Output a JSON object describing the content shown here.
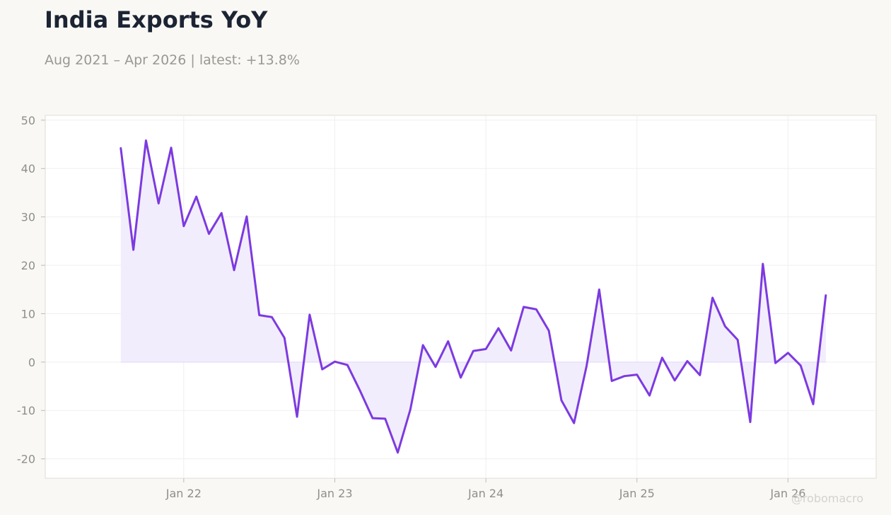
{
  "header": {
    "title": "India Exports YoY",
    "subtitle": "Aug 2021 – Apr 2026 | latest: +13.8%"
  },
  "watermark": "@robomacro",
  "colors": {
    "line": "#7c3ae0",
    "fill": "#f2edfc",
    "background": "#f9f8f4",
    "plot_background": "#ffffff",
    "grid": "#efefef",
    "title": "#1c2434",
    "subtitle": "#999893"
  },
  "chart_data": {
    "type": "area",
    "title": "India Exports YoY",
    "subtitle": "Aug 2021 – Apr 2026 | latest: +13.8%",
    "xlabel": "",
    "ylabel": "",
    "x_start": "2021-08",
    "x_end": "2026-04",
    "x_frequency": "monthly",
    "xlim": [
      "2021-02",
      "2026-08"
    ],
    "ylim": [
      -24,
      51
    ],
    "yticks": [
      -20,
      -10,
      0,
      10,
      20,
      30,
      40,
      50
    ],
    "ytick_labels": [
      "-20",
      "-10",
      "0",
      "10",
      "20",
      "30",
      "40",
      "50"
    ],
    "xticks": [
      "2022-01",
      "2023-01",
      "2024-01",
      "2025-01",
      "2026-01"
    ],
    "xtick_labels": [
      "Jan 22",
      "Jan 23",
      "Jan 24",
      "Jan 25",
      "Jan 26"
    ],
    "grid": true,
    "legend": "none",
    "fill_to": 0,
    "values": [
      44.2,
      23.2,
      45.8,
      32.8,
      44.3,
      28.1,
      34.2,
      26.5,
      30.8,
      19.0,
      30.1,
      9.7,
      9.3,
      5.0,
      -11.3,
      9.8,
      -1.5,
      0.1,
      -0.6,
      -5.9,
      -11.6,
      -11.7,
      -18.7,
      -9.8,
      3.5,
      -1.0,
      4.3,
      -3.2,
      2.3,
      2.7,
      7.0,
      2.4,
      11.4,
      10.9,
      6.5,
      -7.9,
      -12.6,
      -0.8,
      15.0,
      -3.9,
      -2.9,
      -2.6,
      -6.9,
      0.9,
      -3.8,
      0.2,
      -2.7,
      13.3,
      7.4,
      4.6,
      -12.4,
      20.3,
      -0.2,
      1.9,
      -0.7,
      -8.7,
      13.8
    ]
  }
}
